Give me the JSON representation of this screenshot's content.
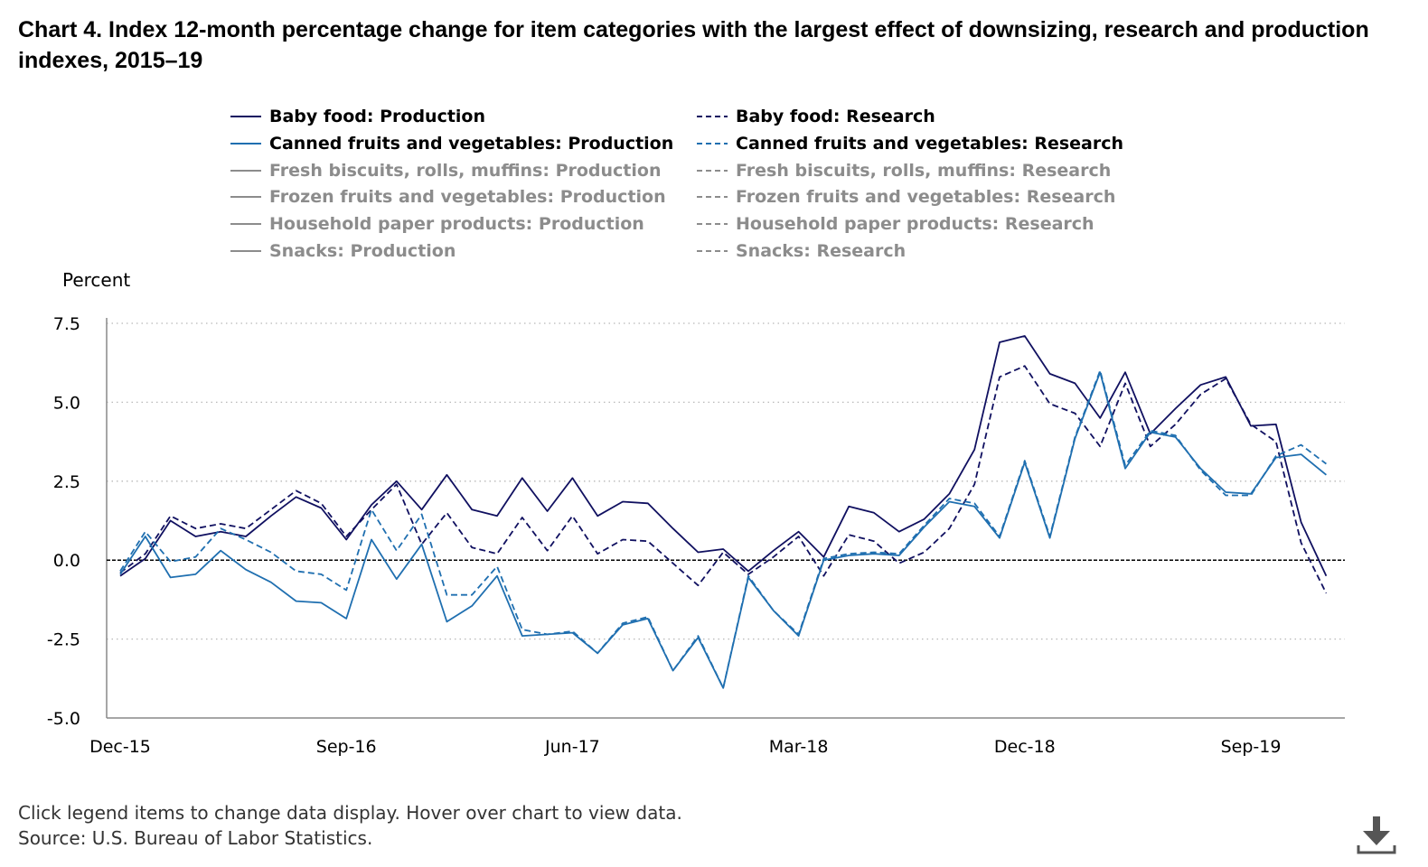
{
  "title": "Chart 4. Index 12-month percentage change for item categories with the largest effect of downsizing, research and production indexes, 2015–19",
  "legend": [
    {
      "label": "Baby food: Production",
      "color": "#101060",
      "dash": false,
      "active": true
    },
    {
      "label": "Baby food: Research",
      "color": "#101060",
      "dash": true,
      "active": true
    },
    {
      "label": "Canned fruits and vegetables: Production",
      "color": "#1f6fb0",
      "dash": false,
      "active": true
    },
    {
      "label": "Canned fruits and vegetables: Research",
      "color": "#1f6fb0",
      "dash": true,
      "active": true
    },
    {
      "label": "Fresh biscuits, rolls, muffins: Production",
      "color": "#8c8c8c",
      "dash": false,
      "active": false
    },
    {
      "label": "Fresh biscuits, rolls, muffins: Research",
      "color": "#8c8c8c",
      "dash": true,
      "active": false
    },
    {
      "label": "Frozen fruits and vegetables: Production",
      "color": "#8c8c8c",
      "dash": false,
      "active": false
    },
    {
      "label": "Frozen fruits and vegetables: Research",
      "color": "#8c8c8c",
      "dash": true,
      "active": false
    },
    {
      "label": "Household paper products: Production",
      "color": "#8c8c8c",
      "dash": false,
      "active": false
    },
    {
      "label": "Household paper products: Research",
      "color": "#8c8c8c",
      "dash": true,
      "active": false
    },
    {
      "label": "Snacks: Production",
      "color": "#8c8c8c",
      "dash": false,
      "active": false
    },
    {
      "label": "Snacks: Research",
      "color": "#8c8c8c",
      "dash": true,
      "active": false
    }
  ],
  "footer": {
    "instructions": "Click legend items to change data display. Hover over chart to view data.",
    "source": "Source: U.S. Bureau of Labor Statistics."
  },
  "download_icon": "download-icon",
  "chart_data": {
    "type": "line",
    "ylabel": "Percent",
    "xlabel": "",
    "ylim": [
      -5.0,
      7.5
    ],
    "yticks": [
      -5.0,
      -2.5,
      0.0,
      2.5,
      5.0,
      7.5
    ],
    "ytick_labels": [
      "-5.0",
      "-2.5",
      "0.0",
      "2.5",
      "5.0",
      "7.5"
    ],
    "x_tick_labels": [
      "Dec-15",
      "Sep-16",
      "Jun-17",
      "Mar-18",
      "Dec-18",
      "Sep-19"
    ],
    "x_tick_dates": [
      "2015-12",
      "2016-09",
      "2017-06",
      "2018-03",
      "2018-12",
      "2019-09"
    ],
    "x": [
      "2015-12",
      "2016-01",
      "2016-02",
      "2016-03",
      "2016-04",
      "2016-05",
      "2016-06",
      "2016-07",
      "2016-08",
      "2016-09",
      "2016-10",
      "2016-11",
      "2016-12",
      "2017-01",
      "2017-02",
      "2017-03",
      "2017-04",
      "2017-05",
      "2017-06",
      "2017-07",
      "2017-08",
      "2017-09",
      "2017-10",
      "2017-11",
      "2017-12",
      "2018-01",
      "2018-02",
      "2018-03",
      "2018-04",
      "2018-05",
      "2018-06",
      "2018-07",
      "2018-08",
      "2018-09",
      "2018-10",
      "2018-11",
      "2018-12",
      "2019-01",
      "2019-02",
      "2019-03",
      "2019-04",
      "2019-05",
      "2019-06",
      "2019-07",
      "2019-08",
      "2019-09",
      "2019-10",
      "2019-11",
      "2019-12"
    ],
    "grid": "horizontal dotted",
    "zero_line": "dashed",
    "legend_position": "top",
    "series": [
      {
        "name": "Baby food: Production",
        "color": "#101060",
        "dash": false,
        "values": [
          -0.5,
          0.05,
          1.25,
          0.75,
          0.9,
          0.75,
          1.4,
          2.0,
          1.65,
          0.65,
          1.75,
          2.5,
          1.6,
          2.7,
          1.6,
          1.4,
          2.6,
          1.55,
          2.6,
          1.4,
          1.85,
          1.8,
          1.0,
          0.25,
          0.35,
          -0.35,
          0.3,
          0.9,
          0.1,
          1.7,
          1.5,
          0.9,
          1.3,
          2.1,
          3.5,
          6.9,
          7.1,
          5.9,
          5.6,
          4.5,
          5.95,
          4.0,
          4.8,
          5.55,
          5.8,
          4.25,
          4.3,
          1.2,
          -0.5
        ]
      },
      {
        "name": "Baby food: Research",
        "color": "#101060",
        "dash": true,
        "values": [
          -0.4,
          0.2,
          1.4,
          1.0,
          1.15,
          1.0,
          1.6,
          2.2,
          1.8,
          0.75,
          1.6,
          2.4,
          0.5,
          1.5,
          0.4,
          0.2,
          1.35,
          0.3,
          1.4,
          0.2,
          0.65,
          0.6,
          -0.1,
          -0.8,
          0.25,
          -0.45,
          0.1,
          0.75,
          -0.5,
          0.8,
          0.6,
          -0.1,
          0.25,
          1.0,
          2.4,
          5.8,
          6.15,
          4.95,
          4.65,
          3.6,
          5.6,
          3.6,
          4.3,
          5.25,
          5.75,
          4.3,
          3.75,
          0.55,
          -1.05
        ]
      },
      {
        "name": "Canned fruits and vegetables: Production",
        "color": "#1f6fb0",
        "dash": false,
        "values": [
          -0.45,
          0.75,
          -0.55,
          -0.45,
          0.3,
          -0.3,
          -0.7,
          -1.3,
          -1.35,
          -1.85,
          0.65,
          -0.6,
          0.5,
          -1.95,
          -1.45,
          -0.5,
          -2.4,
          -2.35,
          -2.3,
          -2.95,
          -2.05,
          -1.85,
          -3.5,
          -2.45,
          -4.05,
          -0.55,
          -1.6,
          -2.4,
          0.0,
          0.15,
          0.2,
          0.15,
          1.05,
          1.85,
          1.7,
          0.7,
          3.1,
          0.7,
          3.85,
          5.95,
          2.9,
          4.05,
          3.9,
          2.9,
          2.15,
          2.1,
          3.25,
          3.35,
          2.7
        ]
      },
      {
        "name": "Canned fruits and vegetables: Research",
        "color": "#1f6fb0",
        "dash": true,
        "values": [
          -0.35,
          0.9,
          -0.05,
          0.1,
          1.0,
          0.65,
          0.25,
          -0.35,
          -0.45,
          -0.95,
          1.6,
          0.3,
          1.45,
          -1.1,
          -1.1,
          -0.2,
          -2.2,
          -2.35,
          -2.25,
          -2.95,
          -2.0,
          -1.8,
          -3.5,
          -2.4,
          -4.05,
          -0.5,
          -1.6,
          -2.35,
          0.05,
          0.2,
          0.25,
          0.2,
          1.1,
          1.95,
          1.8,
          0.75,
          3.15,
          0.75,
          3.9,
          6.0,
          3.0,
          4.1,
          3.95,
          2.85,
          2.05,
          2.05,
          3.3,
          3.65,
          3.05
        ]
      }
    ]
  }
}
